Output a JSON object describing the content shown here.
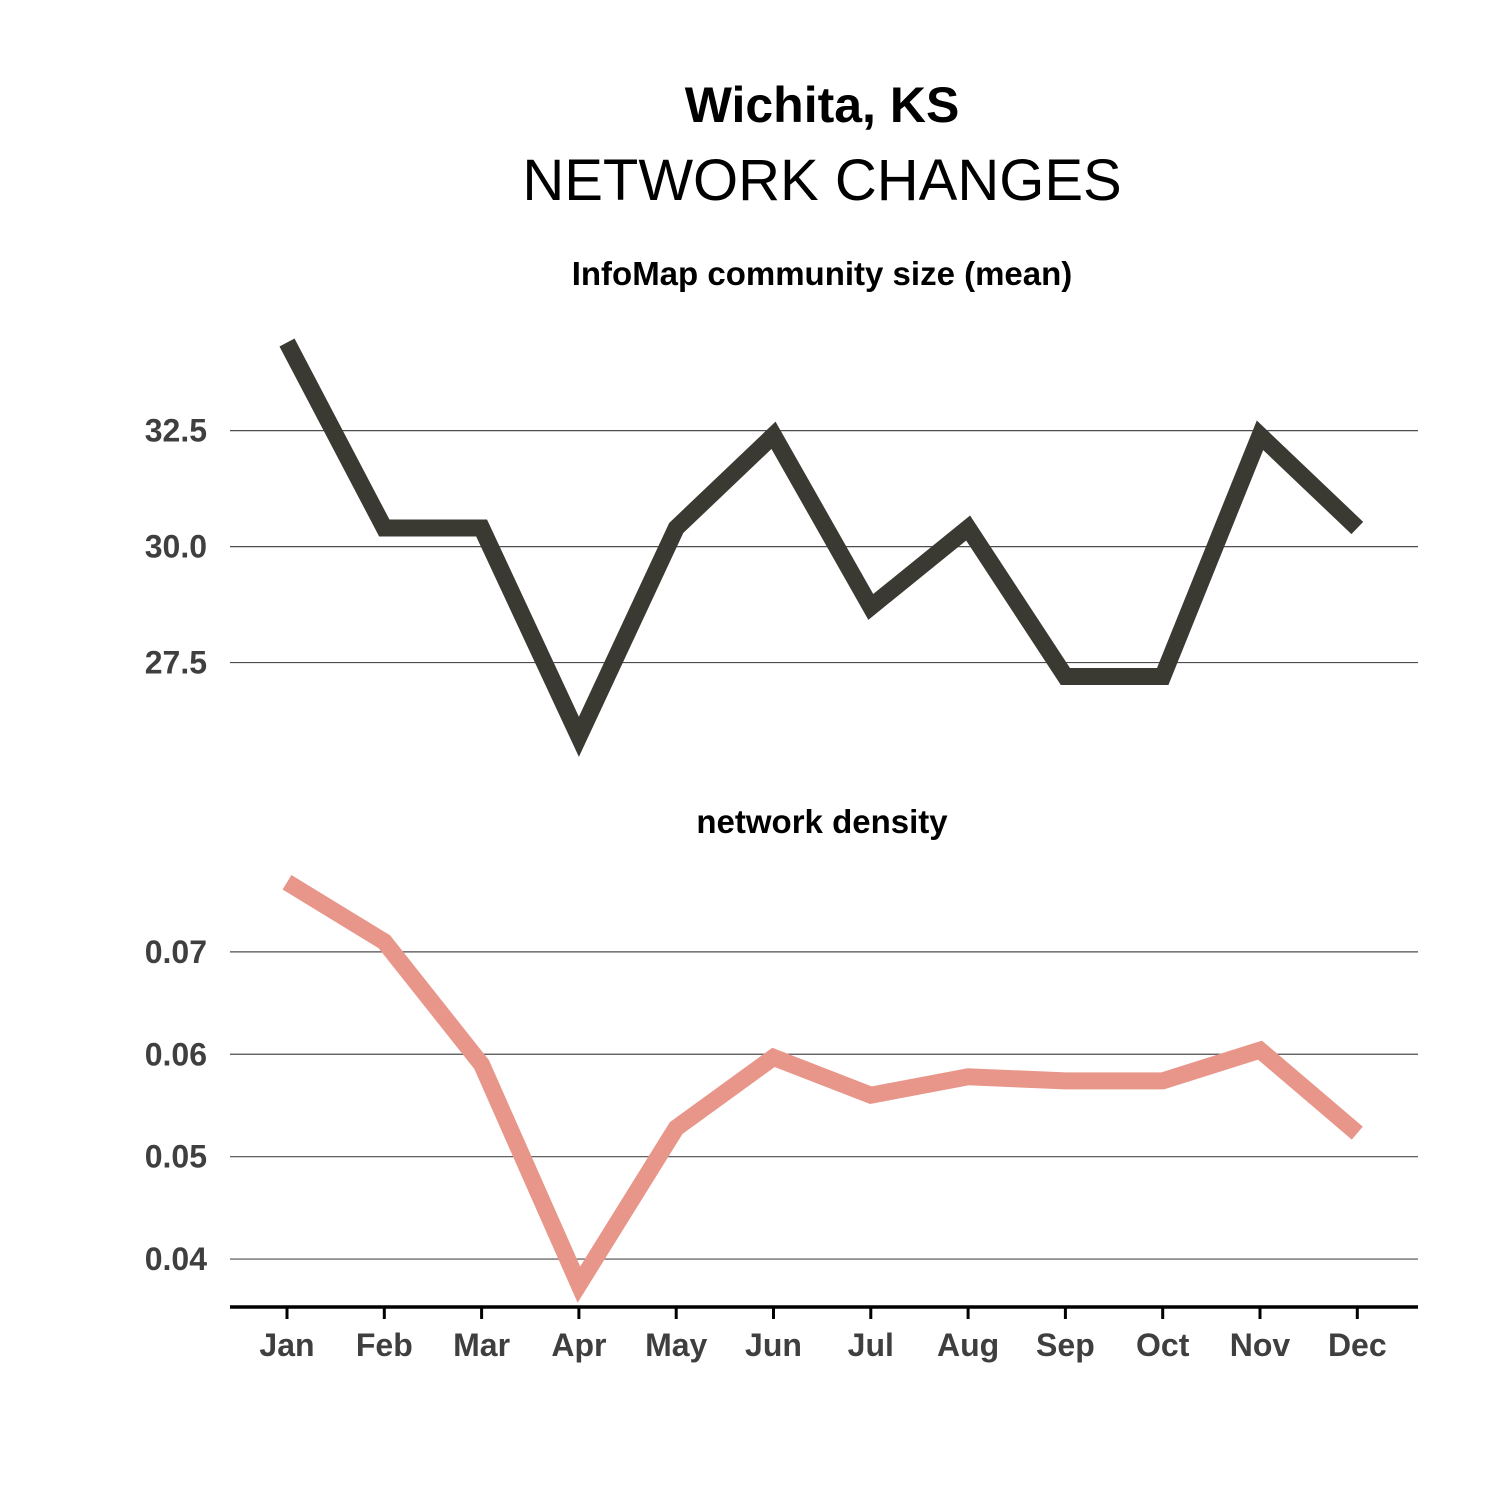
{
  "title": "Wichita, KS",
  "subtitle": "NETWORK CHANGES",
  "colors": {
    "series1": "#3b3a32",
    "series2": "#e8968a"
  },
  "chart_data": [
    {
      "type": "line",
      "title": "InfoMap community size (mean)",
      "categories": [
        "Jan",
        "Feb",
        "Mar",
        "Apr",
        "May",
        "Jun",
        "Jul",
        "Aug",
        "Sep",
        "Oct",
        "Nov",
        "Dec"
      ],
      "values": [
        34.4,
        30.4,
        30.4,
        25.9,
        30.4,
        32.4,
        28.7,
        30.4,
        27.2,
        27.2,
        32.4,
        30.4
      ],
      "yticks": [
        27.5,
        30.0,
        32.5
      ],
      "ytick_labels": [
        "27.5",
        "30.0",
        "32.5"
      ],
      "ylim": [
        25.4,
        35.1
      ],
      "grid": true,
      "color": "#3b3a32"
    },
    {
      "type": "line",
      "title": "network density",
      "categories": [
        "Jan",
        "Feb",
        "Mar",
        "Apr",
        "May",
        "Jun",
        "Jul",
        "Aug",
        "Sep",
        "Oct",
        "Nov",
        "Dec"
      ],
      "values": [
        0.0768,
        0.071,
        0.059,
        0.0375,
        0.0528,
        0.0597,
        0.056,
        0.0578,
        0.0574,
        0.0574,
        0.0604,
        0.0523
      ],
      "yticks": [
        0.04,
        0.05,
        0.06,
        0.07
      ],
      "ytick_labels": [
        "0.04",
        "0.05",
        "0.06",
        "0.07"
      ],
      "ylim": [
        0.036,
        0.078
      ],
      "grid": true,
      "color": "#e8968a"
    }
  ]
}
